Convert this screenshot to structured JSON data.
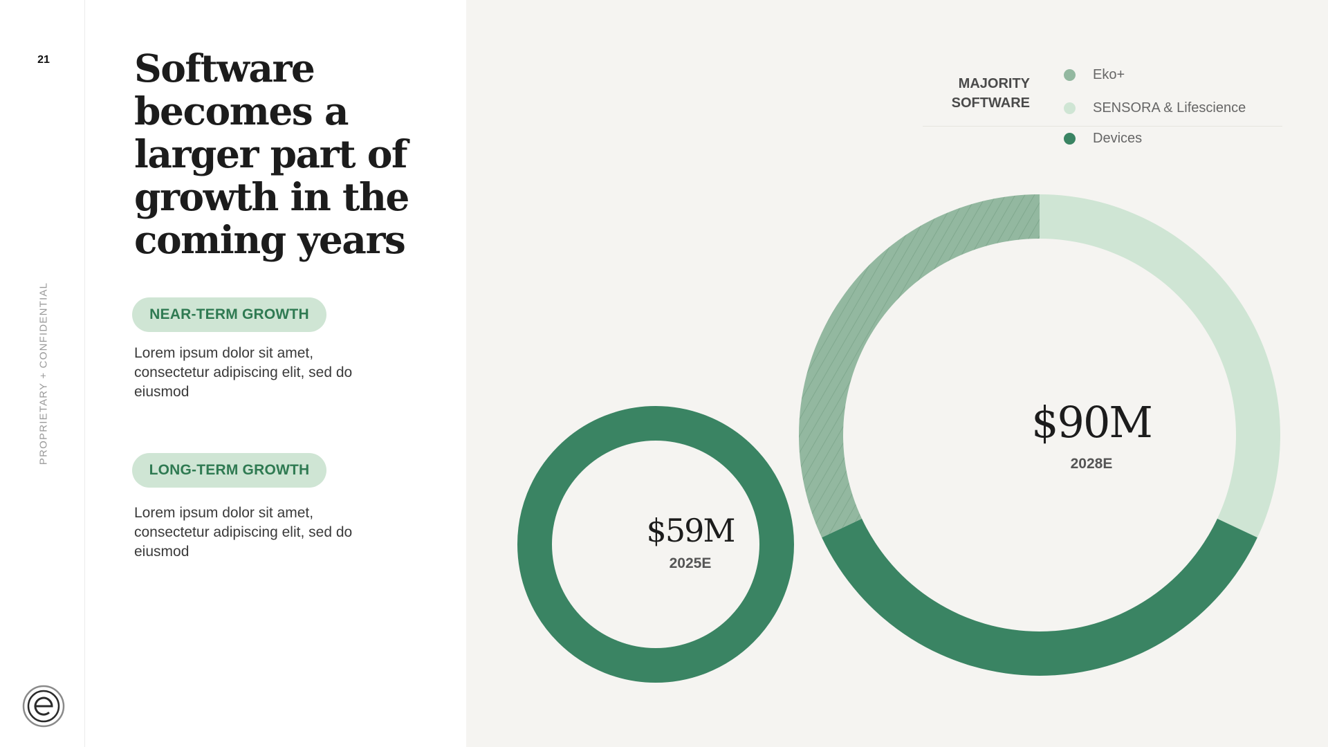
{
  "page": {
    "number": "21",
    "confidential": "PROPRIETARY + CONFIDENTIAL",
    "title": "Software becomes a larger part of growth in the coming years"
  },
  "sections": [
    {
      "label": "NEAR-TERM GROWTH",
      "text": "Lorem ipsum dolor sit amet, consectetur adipiscing elit, sed do eiusmod"
    },
    {
      "label": "LONG-TERM GROWTH",
      "text": "Lorem ipsum dolor sit amet, consectetur adipiscing elit, sed do eiusmod"
    }
  ],
  "legend": {
    "heading": "MAJORITY SOFTWARE",
    "items": [
      {
        "name": "Eko+",
        "color": "#93b8a0"
      },
      {
        "name": "SENSORA &  Lifescience",
        "color": "#cfe5d4"
      },
      {
        "name": "Devices",
        "color": "#3a8463"
      }
    ]
  },
  "colors": {
    "devices": "#3a8463",
    "sensora": "#cfe5d4",
    "eko": "#93b8a0",
    "panel": "#f5f4f1",
    "accent_text": "#2f7a52"
  },
  "chart_data": {
    "type": "pie",
    "title": "Software becomes a larger part of growth in the coming years",
    "series_names": [
      "Eko+",
      "SENSORA &  Lifescience",
      "Devices"
    ],
    "donuts": [
      {
        "label": "2025E",
        "total_label": "$59M",
        "total": 59,
        "segments": [
          {
            "name": "Devices",
            "share": 1.0
          }
        ]
      },
      {
        "label": "2028E",
        "total_label": "$90M",
        "total": 90,
        "segments": [
          {
            "name": "SENSORA &  Lifescience",
            "share": 0.32
          },
          {
            "name": "Devices",
            "share": 0.36
          },
          {
            "name": "Eko+",
            "share": 0.32
          }
        ]
      }
    ]
  }
}
